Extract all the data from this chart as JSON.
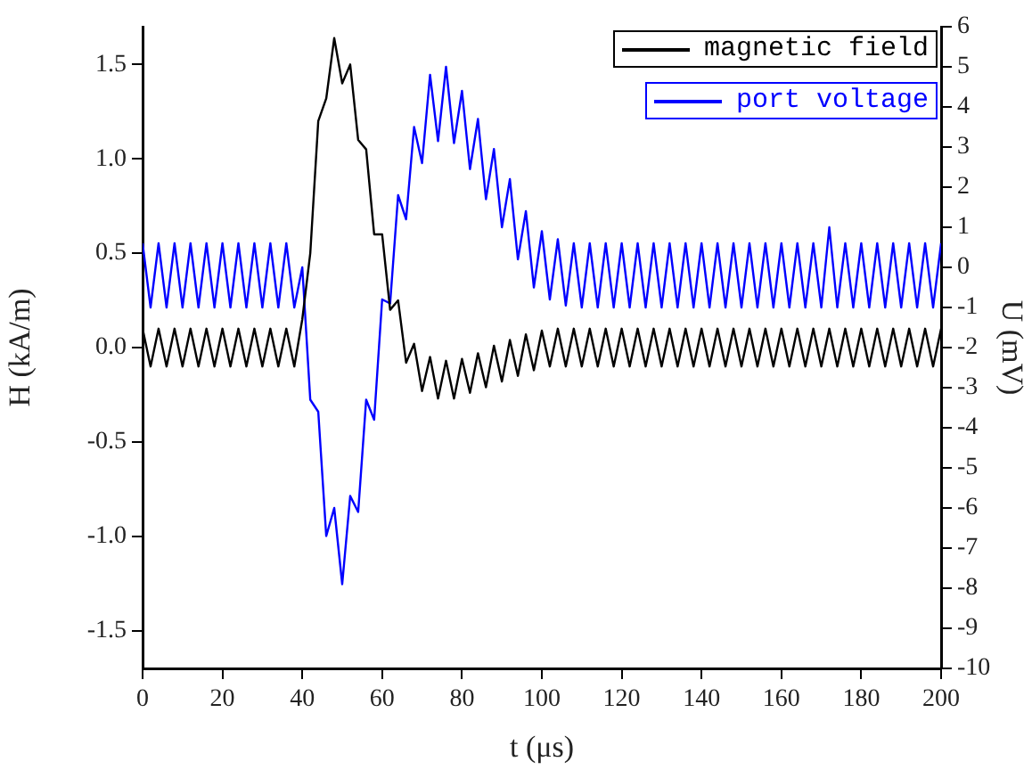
{
  "chart_data": {
    "type": "line",
    "xlabel": "t (μs)",
    "ylabel": "H (kA/m)",
    "y2label": "U (mV)",
    "xlim": [
      0,
      200
    ],
    "xticks": [
      0,
      20,
      40,
      60,
      80,
      100,
      120,
      140,
      160,
      180,
      200
    ],
    "ylim": [
      -1.7,
      1.7
    ],
    "yticks": [
      -1.5,
      {
        "value": -1,
        "label": "-1.0"
      },
      -0.5,
      {
        "value": 0,
        "label": "0.0"
      },
      0.5,
      {
        "value": 1,
        "label": "1.0"
      },
      1.5
    ],
    "y2lim": [
      -10,
      6
    ],
    "y2ticks": [
      -10,
      -9,
      -8,
      -7,
      -6,
      -5,
      -4,
      -3,
      -2,
      -1,
      0,
      1,
      2,
      3,
      4,
      5,
      6
    ],
    "legend": "top right",
    "x": [
      0,
      2,
      4,
      6,
      8,
      10,
      12,
      14,
      16,
      18,
      20,
      22,
      24,
      26,
      28,
      30,
      32,
      34,
      36,
      38,
      40,
      42,
      44,
      46,
      48,
      50,
      52,
      54,
      56,
      58,
      60,
      62,
      64,
      66,
      68,
      70,
      72,
      74,
      76,
      78,
      80,
      82,
      84,
      86,
      88,
      90,
      92,
      94,
      96,
      98,
      100,
      102,
      104,
      106,
      108,
      110,
      112,
      114,
      116,
      118,
      120,
      122,
      124,
      126,
      128,
      130,
      132,
      134,
      136,
      138,
      140,
      142,
      144,
      146,
      148,
      150,
      152,
      154,
      156,
      158,
      160,
      162,
      164,
      166,
      168,
      170,
      172,
      174,
      176,
      178,
      180,
      182,
      184,
      186,
      188,
      190,
      192,
      194,
      196,
      198,
      200
    ],
    "series": [
      {
        "name": "magnetic field",
        "color": "#000000",
        "values": [
          0.1,
          -0.1,
          0.1,
          -0.1,
          0.1,
          -0.1,
          0.1,
          -0.1,
          0.1,
          -0.1,
          0.1,
          -0.1,
          0.1,
          -0.1,
          0.1,
          -0.1,
          0.1,
          -0.1,
          0.1,
          -0.1,
          0.15,
          0.5,
          1.2,
          1.32,
          1.64,
          1.4,
          1.5,
          1.1,
          1.05,
          0.6,
          0.6,
          0.2,
          0.25,
          -0.08,
          0.02,
          -0.23,
          -0.05,
          -0.27,
          -0.07,
          -0.27,
          -0.06,
          -0.24,
          -0.03,
          -0.21,
          0.01,
          -0.18,
          0.04,
          -0.15,
          0.07,
          -0.12,
          0.09,
          -0.1,
          0.1,
          -0.1,
          0.1,
          -0.1,
          0.1,
          -0.1,
          0.1,
          -0.1,
          0.1,
          -0.1,
          0.1,
          -0.1,
          0.1,
          -0.1,
          0.1,
          -0.1,
          0.1,
          -0.1,
          0.1,
          -0.1,
          0.1,
          -0.1,
          0.1,
          -0.1,
          0.1,
          -0.1,
          0.1,
          -0.1,
          0.1,
          -0.1,
          0.1,
          -0.1,
          0.1,
          -0.1,
          0.1,
          -0.1,
          0.1,
          -0.1,
          0.1,
          -0.1,
          0.1,
          -0.1,
          0.1,
          -0.1,
          0.1,
          -0.1,
          0.1,
          -0.1,
          0.1
        ]
      },
      {
        "name": "port voltage",
        "color": "#0000ff",
        "axis": "y2",
        "values": [
          0.6,
          -1,
          0.6,
          -1,
          0.6,
          -1,
          0.6,
          -1,
          0.6,
          -1,
          0.6,
          -1,
          0.6,
          -1,
          0.6,
          -1,
          0.6,
          -1,
          0.6,
          -1,
          0,
          -3.3,
          -3.6,
          -6.7,
          -6,
          -7.9,
          -5.7,
          -6.1,
          -3.3,
          -3.8,
          -0.8,
          -0.9,
          1.8,
          1.2,
          3.5,
          2.6,
          4.8,
          3.15,
          5,
          3.1,
          4.4,
          2.45,
          3.7,
          1.7,
          2.95,
          1,
          2.2,
          0.2,
          1.4,
          -0.5,
          0.9,
          -0.8,
          0.7,
          -0.95,
          0.6,
          -1,
          0.6,
          -1,
          0.6,
          -1,
          0.6,
          -1,
          0.6,
          -1,
          0.6,
          -1,
          0.6,
          -1,
          0.6,
          -1,
          0.6,
          -1,
          0.6,
          -1,
          0.6,
          -1,
          0.6,
          -1,
          0.6,
          -1,
          0.6,
          -1,
          0.6,
          -1,
          0.6,
          -1,
          1,
          -1,
          0.6,
          -1,
          0.6,
          -1,
          0.6,
          -1,
          0.6,
          -1,
          0.6,
          -1,
          0.6,
          -1,
          0.6
        ]
      }
    ]
  }
}
